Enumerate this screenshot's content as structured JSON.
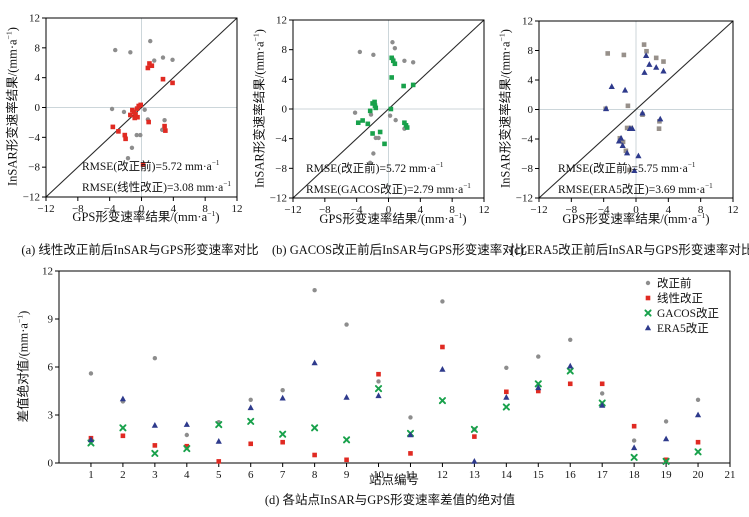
{
  "colors": {
    "axis": "#000000",
    "diagonal": "#2a2a2a",
    "gridline": "#ccd6da",
    "gray": "#8d8d8d",
    "gray_square": "#97908a",
    "red": "#e02a22",
    "green": "#18a14b",
    "navy": "#2e3a8c"
  },
  "panels": {
    "a": {
      "ylabel": {
        "pre": "InSAR形变速率结果/(mm·a",
        "sup": "−1",
        "post": ")"
      },
      "xlabel": {
        "pre": "GPS形变速率结果/(mm·a",
        "sup": "−1",
        "post": ")"
      },
      "rmse": [
        {
          "pre": "RMSE(改正前)=5.72 mm·a",
          "sup": "−1"
        },
        {
          "pre": "RMSE(线性改正)=3.08 mm·a",
          "sup": "−1"
        }
      ],
      "caption": "(a) 线性改正前后InSAR与GPS形变速率对比"
    },
    "b": {
      "ylabel": {
        "pre": "InSAR形变速率结果/(mm·a",
        "sup": "−1",
        "post": ")"
      },
      "xlabel": {
        "pre": "GPS形变速率结果/(mm·a",
        "sup": "−1",
        "post": ")"
      },
      "rmse": [
        {
          "pre": "RMSE(改正前)=5.72 mm·a",
          "sup": "−1"
        },
        {
          "pre": "RMSE(GACOS改正)=2.79 mm·a",
          "sup": "−1"
        }
      ],
      "caption": "(b) GACOS改正前后InSAR与GPS形变速率对比"
    },
    "c": {
      "ylabel": {
        "pre": "InSAR形变速率结果/(mm·a",
        "sup": "−1",
        "post": ")"
      },
      "xlabel": {
        "pre": "GPS形变速率结果/(mm·a",
        "sup": "−1",
        "post": ")"
      },
      "rmse": [
        {
          "pre": "RMSE(改正前)=5.75 mm·a",
          "sup": "−1"
        },
        {
          "pre": "RMSE(ERA5改正)=3.69 mm·a",
          "sup": "−1"
        }
      ],
      "caption": "(c) ERA5改正前后InSAR与GPS形变速率对比"
    },
    "d": {
      "ylabel": {
        "pre": "差值绝对值/(mm·a",
        "sup": "−1",
        "post": ")"
      },
      "xlabel": "站点编号",
      "caption": "(d) 各站点InSAR与GPS形变速率差值的绝对值",
      "legend": [
        {
          "label": "改正前",
          "marker": "circle",
          "color": "#8d8d8d"
        },
        {
          "label": "线性改正",
          "marker": "square",
          "color": "#e02a22"
        },
        {
          "label": "GACOS改正",
          "marker": "xmark",
          "color": "#18a14b"
        },
        {
          "label": "ERA5改正",
          "marker": "triangle",
          "color": "#2e3a8c"
        }
      ]
    }
  },
  "chart_data": [
    {
      "id": "a",
      "type": "scatter",
      "title": "(a) 线性改正前后InSAR与GPS形变速率对比",
      "xlabel": "GPS形变速率结果/(mm·a⁻¹)",
      "ylabel": "InSAR形变速率结果/(mm·a⁻¹)",
      "xlim": [
        -12,
        12
      ],
      "ylim": [
        -12,
        12
      ],
      "xticks": [
        -12,
        -8,
        -4,
        0,
        4,
        8,
        12
      ],
      "yticks": [
        -12,
        -8,
        -4,
        0,
        4,
        8,
        12
      ],
      "diagonal": true,
      "zero_gridlines": true,
      "annotations": [
        "RMSE(改正前)=5.72 mm·a⁻¹",
        "RMSE(线性改正)=3.08 mm·a⁻¹"
      ],
      "series": [
        {
          "name": "改正前",
          "marker": "circle",
          "color": "#8d8d8d",
          "points": [
            [
              -3.3,
              7.7
            ],
            [
              -1.4,
              7.4
            ],
            [
              1.1,
              8.9
            ],
            [
              1.6,
              6.3
            ],
            [
              2.7,
              6.7
            ],
            [
              3.9,
              6.4
            ],
            [
              -3.7,
              -0.2
            ],
            [
              -2.2,
              -0.6
            ],
            [
              0.4,
              -0.3
            ],
            [
              0.8,
              -1.6
            ],
            [
              2.9,
              -1.7
            ],
            [
              2.6,
              -3.0
            ],
            [
              -0.6,
              -3.7
            ],
            [
              -0.15,
              -3.7
            ],
            [
              -1.2,
              -5.4
            ],
            [
              -1.7,
              -6.8
            ]
          ]
        },
        {
          "name": "线性改正",
          "marker": "square",
          "color": "#e02a22",
          "points": [
            [
              0.8,
              5.3
            ],
            [
              1.0,
              5.9
            ],
            [
              1.3,
              5.6
            ],
            [
              2.7,
              3.8
            ],
            [
              3.9,
              3.3
            ],
            [
              -3.6,
              -2.6
            ],
            [
              -2.9,
              -3.2
            ],
            [
              -2.1,
              -3.7
            ],
            [
              -2.0,
              -4.2
            ],
            [
              -1.4,
              -1.0
            ],
            [
              -1.15,
              -0.35
            ],
            [
              -0.95,
              -0.6
            ],
            [
              -0.75,
              -0.9
            ],
            [
              -0.55,
              -0.15
            ],
            [
              -0.35,
              0.2
            ],
            [
              -0.1,
              0.35
            ],
            [
              -0.85,
              -1.4
            ],
            [
              -0.5,
              -1.3
            ],
            [
              0.9,
              -1.95
            ],
            [
              2.9,
              -2.5
            ],
            [
              3.0,
              -3.1
            ],
            [
              0.2,
              -7.65
            ]
          ]
        }
      ]
    },
    {
      "id": "b",
      "type": "scatter",
      "title": "(b) GACOS改正前后InSAR与GPS形变速率对比",
      "xlabel": "GPS形变速率结果/(mm·a⁻¹)",
      "ylabel": "InSAR形变速率结果/(mm·a⁻¹)",
      "xlim": [
        -12,
        12
      ],
      "ylim": [
        -12,
        12
      ],
      "xticks": [
        -12,
        -8,
        -4,
        0,
        4,
        8,
        12
      ],
      "yticks": [
        -12,
        -8,
        -4,
        0,
        4,
        8,
        12
      ],
      "diagonal": true,
      "zero_gridlines": true,
      "annotations": [
        "RMSE(改正前)=5.72 mm·a⁻¹",
        "RMSE(GACOS改正)=2.79 mm·a⁻¹"
      ],
      "series": [
        {
          "name": "改正前",
          "marker": "circle",
          "color": "#8d8d8d",
          "points": [
            [
              -3.6,
              7.7
            ],
            [
              -1.9,
              7.3
            ],
            [
              0.5,
              9.0
            ],
            [
              0.8,
              8.2
            ],
            [
              0.5,
              6.8
            ],
            [
              2.0,
              6.5
            ],
            [
              3.1,
              6.3
            ],
            [
              -4.2,
              -0.5
            ],
            [
              -2.2,
              -0.75
            ],
            [
              0.2,
              -0.9
            ],
            [
              0.9,
              -1.5
            ],
            [
              2.0,
              -2.65
            ],
            [
              -1.6,
              -3.9
            ],
            [
              -1.25,
              -3.9
            ],
            [
              -1.9,
              -6.0
            ],
            [
              -2.3,
              -7.25
            ]
          ]
        },
        {
          "name": "GACOS改正",
          "marker": "square",
          "color": "#18a14b",
          "points": [
            [
              0.4,
              6.9
            ],
            [
              0.6,
              6.5
            ],
            [
              0.8,
              6.1
            ],
            [
              0.4,
              4.25
            ],
            [
              1.9,
              3.1
            ],
            [
              3.1,
              3.25
            ],
            [
              -2.0,
              0.75
            ],
            [
              -1.75,
              0.95
            ],
            [
              -1.7,
              0.45
            ],
            [
              -1.6,
              0.15
            ],
            [
              -2.3,
              -0.25
            ],
            [
              -3.8,
              -1.85
            ],
            [
              -3.25,
              -1.55
            ],
            [
              -2.6,
              -2.0
            ],
            [
              -2.0,
              -3.3
            ],
            [
              -1.05,
              -3.1
            ],
            [
              -0.5,
              -4.7
            ],
            [
              2.0,
              -1.85
            ],
            [
              2.2,
              -2.2
            ],
            [
              2.35,
              -2.5
            ],
            [
              0.3,
              0.0
            ]
          ]
        }
      ]
    },
    {
      "id": "c",
      "type": "scatter",
      "title": "(c) ERA5改正前后InSAR与GPS形变速率对比",
      "xlabel": "GPS形变速率结果/(mm·a⁻¹)",
      "ylabel": "InSAR形变速率结果/(mm·a⁻¹)",
      "xlim": [
        -12,
        12
      ],
      "ylim": [
        -12,
        12
      ],
      "xticks": [
        -12,
        -8,
        -4,
        0,
        4,
        8,
        12
      ],
      "yticks": [
        -12,
        -8,
        -4,
        0,
        4,
        8,
        12
      ],
      "diagonal": true,
      "zero_gridlines": true,
      "annotations": [
        "RMSE(改正前)=5.75 mm·a⁻¹",
        "RMSE(ERA5改正)=3.69 mm·a⁻¹"
      ],
      "series": [
        {
          "name": "改正前",
          "marker": "square",
          "color": "#97908a",
          "points": [
            [
              -3.5,
              7.6
            ],
            [
              -1.5,
              7.4
            ],
            [
              1.0,
              8.8
            ],
            [
              1.3,
              7.9
            ],
            [
              2.5,
              7.0
            ],
            [
              3.4,
              6.5
            ],
            [
              -3.75,
              0.1
            ],
            [
              -1.0,
              0.5
            ],
            [
              0.8,
              -0.7
            ],
            [
              2.9,
              -1.6
            ],
            [
              2.85,
              -2.6
            ],
            [
              -1.1,
              -2.5
            ],
            [
              -0.65,
              -2.5
            ],
            [
              -2.0,
              -3.9
            ],
            [
              -1.6,
              -4.4
            ],
            [
              -1.25,
              -5.6
            ],
            [
              -0.8,
              -8.2
            ]
          ]
        },
        {
          "name": "ERA5改正",
          "marker": "triangle",
          "color": "#2e3a8c",
          "points": [
            [
              1.25,
              7.3
            ],
            [
              1.65,
              6.1
            ],
            [
              1.05,
              5.0
            ],
            [
              2.5,
              5.7
            ],
            [
              3.4,
              5.2
            ],
            [
              -3.0,
              3.1
            ],
            [
              -1.35,
              2.6
            ],
            [
              -3.7,
              0.1
            ],
            [
              0.8,
              -0.5
            ],
            [
              3.0,
              -1.3
            ],
            [
              -0.75,
              -2.6
            ],
            [
              -0.45,
              -2.6
            ],
            [
              -1.85,
              -3.9
            ],
            [
              -2.1,
              -4.3
            ],
            [
              -1.65,
              -4.9
            ],
            [
              -1.1,
              -5.9
            ],
            [
              0.3,
              -6.3
            ],
            [
              -0.2,
              -8.3
            ]
          ]
        }
      ]
    },
    {
      "id": "d",
      "type": "scatter",
      "title": "(d) 各站点InSAR与GPS形变速率差值的绝对值",
      "xlabel": "站点编号",
      "ylabel": "差值绝对值/(mm·a⁻¹)",
      "xlim": [
        0,
        21
      ],
      "ylim": [
        0,
        12
      ],
      "xticks": [
        1,
        2,
        3,
        4,
        5,
        6,
        7,
        8,
        9,
        10,
        11,
        12,
        13,
        14,
        15,
        16,
        17,
        18,
        19,
        20,
        21
      ],
      "yticks": [
        0,
        3,
        6,
        9,
        12
      ],
      "diagonal": false,
      "zero_gridlines": false,
      "legend_position": "top-right",
      "x": [
        1,
        2,
        3,
        4,
        5,
        6,
        7,
        8,
        9,
        10,
        11,
        12,
        13,
        14,
        15,
        16,
        17,
        18,
        19,
        20
      ],
      "series": [
        {
          "name": "改正前",
          "marker": "circle",
          "color": "#8d8d8d",
          "values": [
            5.6,
            3.85,
            6.55,
            1.75,
            2.55,
            3.95,
            4.55,
            10.8,
            8.65,
            5.1,
            2.85,
            10.1,
            2.1,
            5.95,
            6.65,
            7.7,
            4.35,
            1.4,
            2.6,
            3.95
          ]
        },
        {
          "name": "线性改正",
          "marker": "square",
          "color": "#e02a22",
          "values": [
            1.55,
            1.7,
            1.1,
            1.05,
            0.1,
            1.2,
            1.3,
            0.5,
            0.2,
            5.55,
            0.6,
            7.25,
            1.65,
            4.45,
            4.5,
            4.95,
            4.95,
            2.3,
            0.2,
            1.3
          ]
        },
        {
          "name": "GACOS改正",
          "marker": "xmark",
          "color": "#18a14b",
          "values": [
            1.25,
            2.2,
            0.6,
            0.9,
            2.4,
            2.6,
            1.8,
            2.2,
            1.45,
            4.65,
            1.85,
            3.9,
            2.1,
            3.5,
            4.95,
            5.75,
            3.75,
            0.35,
            0.1,
            0.7
          ]
        },
        {
          "name": "ERA5改正",
          "marker": "triangle",
          "color": "#2e3a8c",
          "values": [
            1.45,
            4.0,
            2.35,
            2.4,
            1.35,
            3.45,
            4.05,
            6.25,
            4.1,
            4.2,
            1.75,
            5.85,
            0.1,
            4.1,
            4.7,
            6.05,
            3.6,
            0.95,
            1.5,
            3.0
          ]
        }
      ]
    }
  ]
}
